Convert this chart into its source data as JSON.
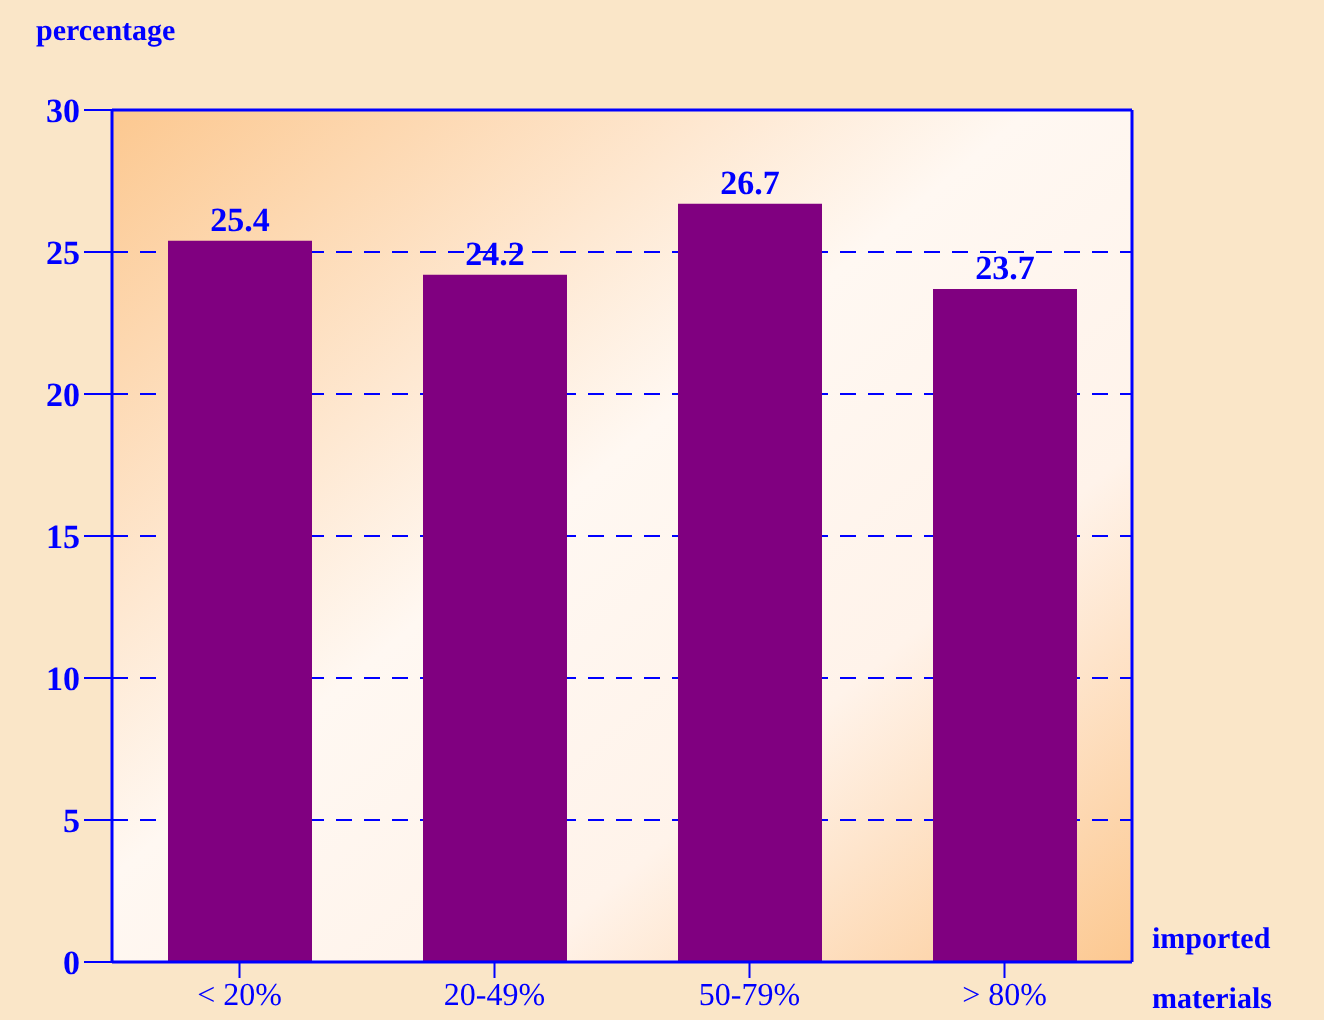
{
  "chart_data": {
    "type": "bar",
    "ylabel": "percentage",
    "xlabel": "imported materials",
    "categories": [
      "< 20%",
      "20-49%",
      "50-79%",
      "> 80%"
    ],
    "values": [
      25.4,
      24.2,
      26.7,
      23.7
    ],
    "color": "#800080",
    "ylim": [
      0,
      30
    ],
    "yticks": [
      0,
      5,
      10,
      15,
      20,
      25,
      30
    ],
    "grid": "y",
    "data_labels": true
  }
}
